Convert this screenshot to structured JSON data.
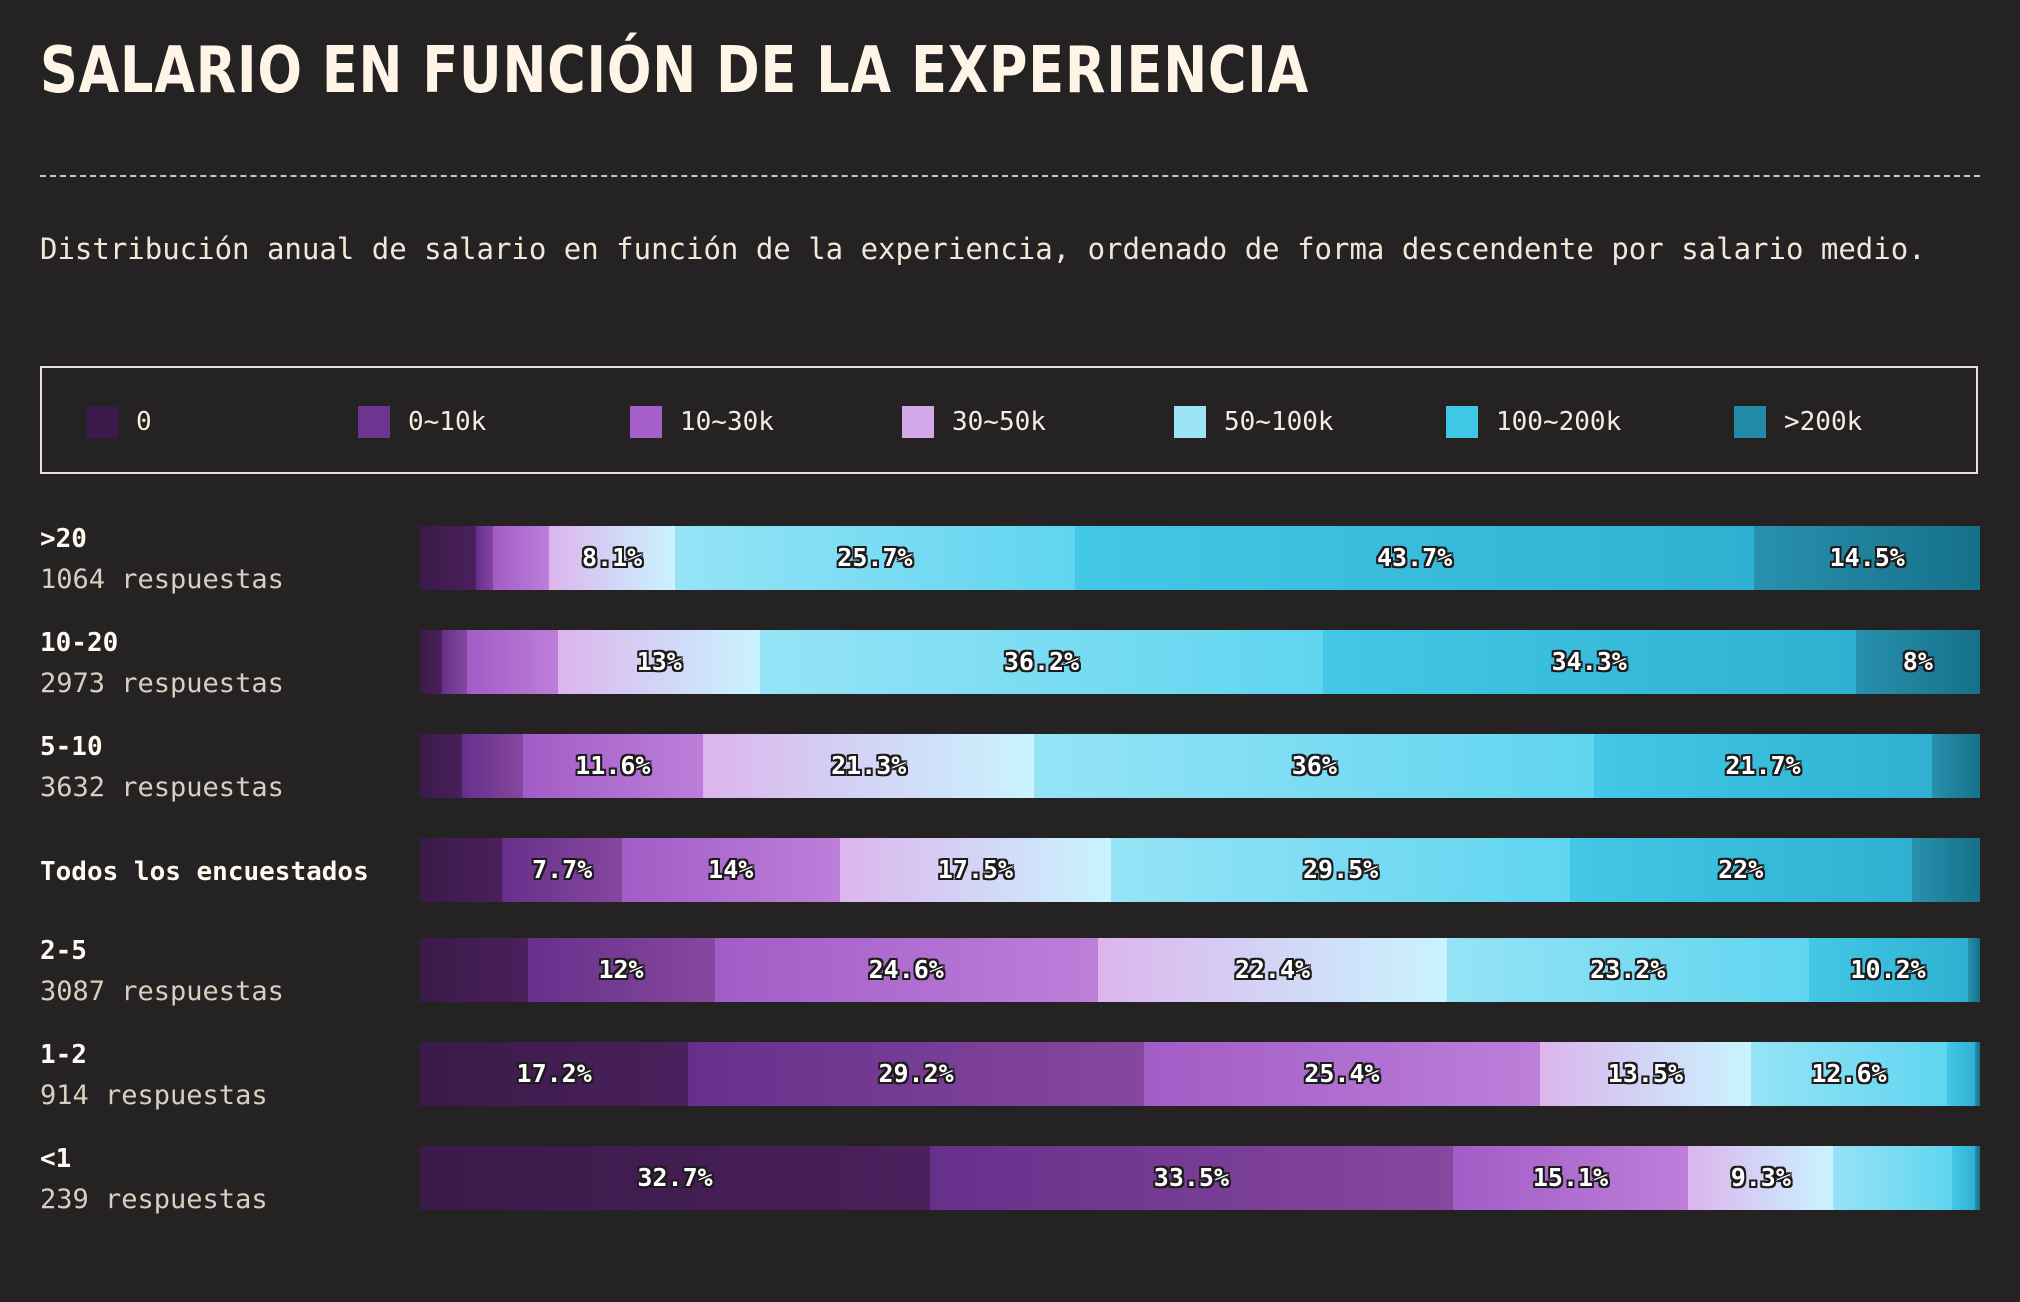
{
  "title": "SALARIO EN FUNCIÓN DE LA EXPERIENCIA",
  "subtitle": "Distribución anual de salario en función de la experiencia, ordenado de forma descendente por salario medio.",
  "legend": [
    {
      "label": "0",
      "color": "#3a1a48"
    },
    {
      "label": "0~10k",
      "color": "#6e3590"
    },
    {
      "label": "10~30k",
      "color": "#a65fc9"
    },
    {
      "label": "30~50k",
      "color": "#d5a8ea"
    },
    {
      "label": "50~100k",
      "color": "#9be3f5"
    },
    {
      "label": "100~200k",
      "color": "#3fc7e6"
    },
    {
      "label": ">200k",
      "color": "#238aa6"
    }
  ],
  "gradients": [
    [
      "#3a1a48",
      "#4a205c"
    ],
    [
      "#66308a",
      "#86479f"
    ],
    [
      "#a25cc6",
      "#bd7fda"
    ],
    [
      "#dcb5ec",
      "#c9f4ff"
    ],
    [
      "#96e3f6",
      "#5fd5ef"
    ],
    [
      "#42c8e6",
      "#2fb0d1"
    ],
    [
      "#2791ad",
      "#16708a"
    ]
  ],
  "chart_data": {
    "type": "bar",
    "orientation": "horizontal-stacked-100",
    "series_names": [
      "0",
      "0~10k",
      "10~30k",
      "30~50k",
      "50~100k",
      "100~200k",
      ">200k"
    ],
    "rows": [
      {
        "name": ">20",
        "count": "1064 respuestas",
        "values": [
          3.6,
          1.1,
          3.6,
          8.1,
          25.7,
          43.7,
          14.5
        ],
        "labels": [
          "",
          "",
          "",
          "8.1%",
          "25.7%",
          "43.7%",
          "14.5%"
        ]
      },
      {
        "name": "10-20",
        "count": "2973 respuestas",
        "values": [
          1.4,
          1.6,
          5.9,
          13,
          36.2,
          34.3,
          8
        ],
        "labels": [
          "",
          "",
          "",
          "13%",
          "36.2%",
          "34.3%",
          "8%"
        ]
      },
      {
        "name": "5-10",
        "count": "3632 respuestas",
        "values": [
          2.7,
          3.9,
          11.6,
          21.3,
          36,
          21.7,
          3.1
        ],
        "labels": [
          "",
          "",
          "11.6%",
          "21.3%",
          "36%",
          "21.7%",
          ""
        ]
      },
      {
        "name": "Todos los encuestados",
        "count": "",
        "values": [
          5.3,
          7.7,
          14,
          17.5,
          29.5,
          22,
          4.4
        ],
        "labels": [
          "",
          "7.7%",
          "14%",
          "17.5%",
          "29.5%",
          "22%",
          ""
        ]
      },
      {
        "name": "2-5",
        "count": "3087 respuestas",
        "values": [
          6.9,
          12,
          24.6,
          22.4,
          23.2,
          10.2,
          0.8
        ],
        "labels": [
          "",
          "12%",
          "24.6%",
          "22.4%",
          "23.2%",
          "10.2%",
          ""
        ]
      },
      {
        "name": "1-2",
        "count": "914 respuestas",
        "values": [
          17.2,
          29.2,
          25.4,
          13.5,
          12.6,
          1.8,
          0.3
        ],
        "labels": [
          "17.2%",
          "29.2%",
          "25.4%",
          "13.5%",
          "12.6%",
          "",
          ""
        ]
      },
      {
        "name": "<1",
        "count": "239 respuestas",
        "values": [
          32.7,
          33.5,
          15.1,
          9.3,
          7.6,
          1.5,
          0.3
        ],
        "labels": [
          "32.7%",
          "33.5%",
          "15.1%",
          "9.3%",
          "",
          "",
          ""
        ]
      }
    ]
  }
}
